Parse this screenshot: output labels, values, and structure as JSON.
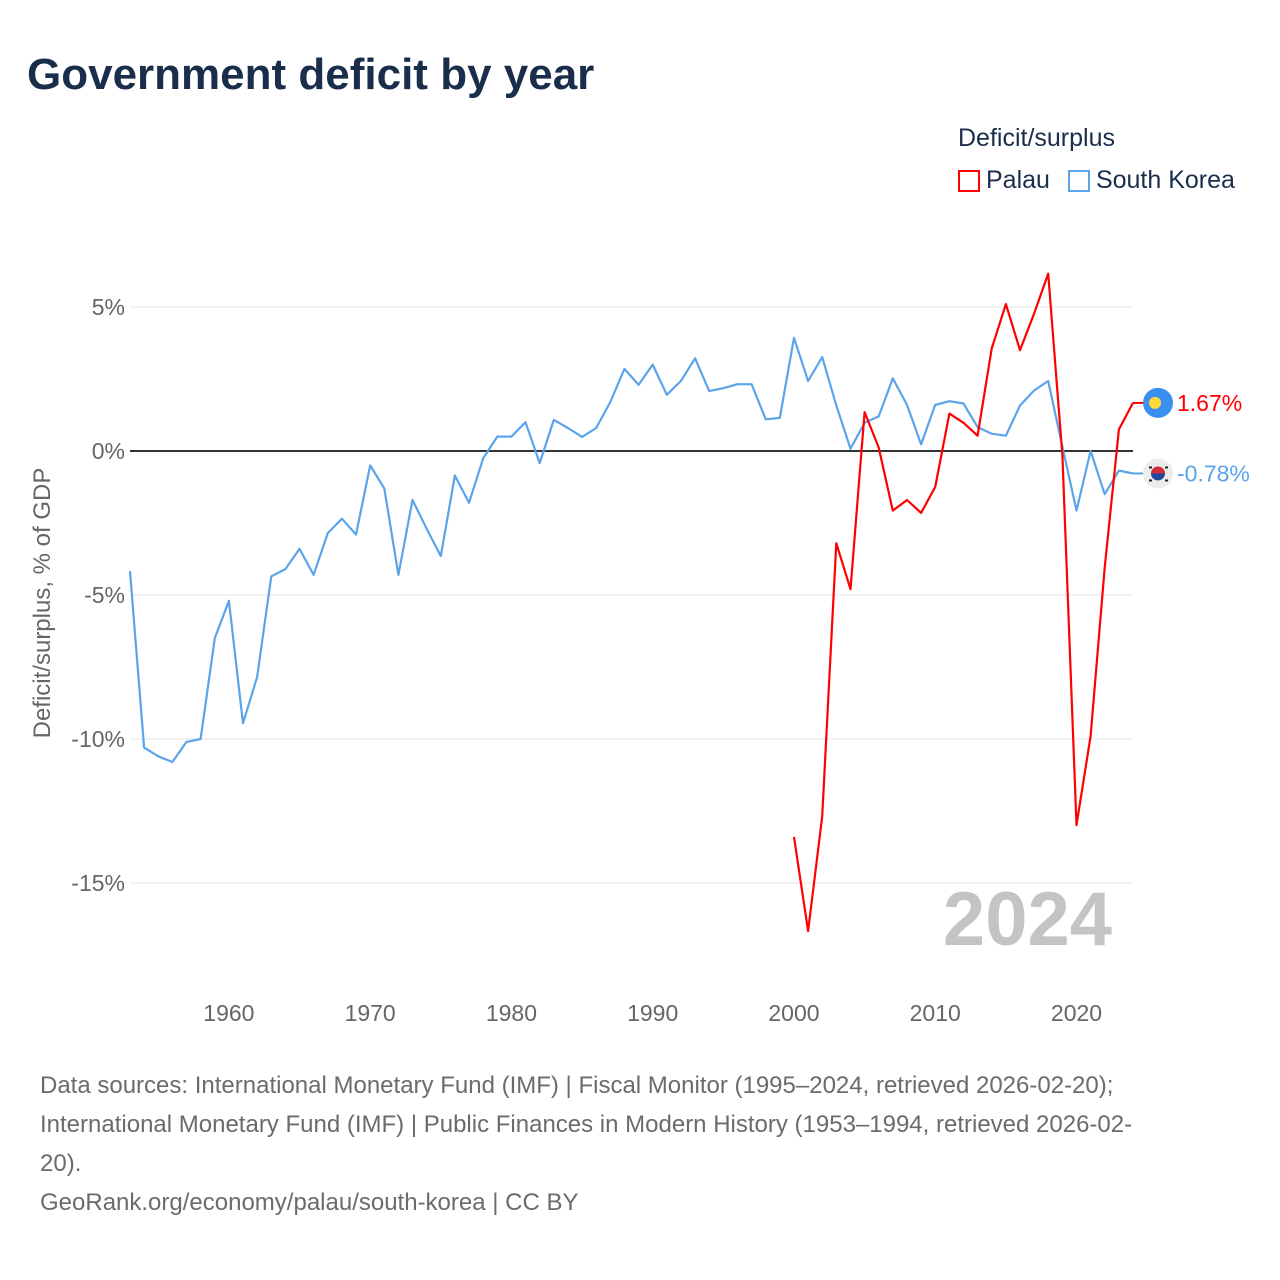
{
  "title": "Government deficit by year",
  "legend": {
    "title": "Deficit/surplus",
    "items": [
      {
        "label": "Palau",
        "color": "#ff0000"
      },
      {
        "label": "South Korea",
        "color": "#5ba4ea"
      }
    ]
  },
  "chart_data": {
    "type": "line",
    "title": "Government deficit by year",
    "xlabel": "",
    "ylabel": "Deficit/surplus, % of GDP",
    "xlim": [
      1953,
      2024
    ],
    "ylim": [
      -17.5,
      6.5
    ],
    "x_ticks": [
      1960,
      1970,
      1980,
      1990,
      2000,
      2010,
      2020
    ],
    "y_ticks": [
      {
        "value": 5,
        "label": "5%"
      },
      {
        "value": 0,
        "label": "0%"
      },
      {
        "value": -5,
        "label": "-5%"
      },
      {
        "value": -10,
        "label": "-10%"
      },
      {
        "value": -15,
        "label": "-15%"
      }
    ],
    "year_watermark": "2024",
    "series": [
      {
        "name": "South Korea",
        "color": "#5ba4ea",
        "flag": "south-korea-flag",
        "end_label": "-0.78%",
        "start_year": 1953,
        "values": [
          -4.17,
          -10.3,
          -10.6,
          -10.8,
          -10.1,
          -10.0,
          -6.5,
          -5.2,
          -9.45,
          -7.85,
          -4.35,
          -4.1,
          -3.4,
          -4.3,
          -2.85,
          -2.35,
          -2.9,
          -0.5,
          -1.3,
          -4.3,
          -1.7,
          -2.7,
          -3.65,
          -0.85,
          -1.8,
          -0.25,
          0.5,
          0.5,
          1.0,
          -0.42,
          1.08,
          0.8,
          0.49,
          0.8,
          1.7,
          2.85,
          2.3,
          3.0,
          1.95,
          2.43,
          3.22,
          2.08,
          2.18,
          2.32,
          2.32,
          1.1,
          1.15,
          3.93,
          2.43,
          3.26,
          1.58,
          0.08,
          0.98,
          1.2,
          2.52,
          1.6,
          0.23,
          1.6,
          1.73,
          1.65,
          0.83,
          0.6,
          0.53,
          1.58,
          2.1,
          2.43,
          0.15,
          -2.07,
          0.0,
          -1.5,
          -0.68,
          -0.78
        ]
      },
      {
        "name": "Palau",
        "color": "#ff0000",
        "flag": "palau-flag",
        "end_label": "1.67%",
        "start_year": 2000,
        "values": [
          -13.4,
          -16.67,
          -12.69,
          -3.2,
          -4.8,
          1.35,
          0.12,
          -2.07,
          -1.7,
          -2.15,
          -1.25,
          1.3,
          0.98,
          0.53,
          3.56,
          5.1,
          3.5,
          4.77,
          6.16,
          -0.15,
          -12.99,
          -9.9,
          -4.05,
          0.75,
          1.67
        ]
      }
    ]
  },
  "footer": {
    "sources_line1": "Data sources: International Monetary Fund (IMF) | Fiscal Monitor (1995–2024, retrieved 2026-02-20);",
    "sources_line2": "International Monetary Fund (IMF) | Public Finances in Modern History (1953–1994, retrieved 2026-02-",
    "sources_line3": "20).",
    "credit": "GeoRank.org/economy/palau/south-korea | CC BY"
  }
}
